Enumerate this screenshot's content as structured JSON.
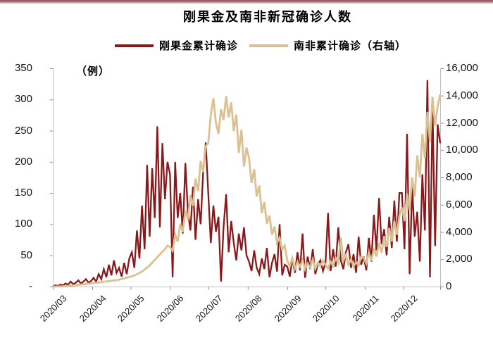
{
  "page": {
    "title": "刚果金及南非新冠确诊人数",
    "unit_label": "（例）"
  },
  "legend": {
    "congo": "刚果金累计确诊",
    "sa": "南非累计确诊（右轴）"
  },
  "colors": {
    "congo_line": "#8a1719",
    "sa_line": "#dbc191",
    "axis_line": "#bfbfbf",
    "tick_mark": "#8c8c8c",
    "top_rule": "#8e5560"
  },
  "chart_data": {
    "type": "line",
    "title": "刚果金及南非新冠确诊人数",
    "unit_label": "（例）",
    "grid": "off",
    "legend_position": "top",
    "x_tick_labels": [
      "2020/03",
      "2020/04",
      "2020/05",
      "2020/06",
      "2020/07",
      "2020/08",
      "2020/09",
      "2020/10",
      "2020/11",
      "2020/12"
    ],
    "x_month_day_offsets": [
      0,
      31,
      61,
      92,
      122,
      153,
      184,
      214,
      245,
      275
    ],
    "x_domain_days": [
      0,
      304
    ],
    "left_axis": {
      "label": "（例）",
      "min": 0,
      "max": 350,
      "tick_labels_top_to_bottom": [
        "350",
        "300",
        "250",
        "200",
        "150",
        "100",
        "50",
        "-"
      ]
    },
    "right_axis": {
      "min": 0,
      "max": 16000,
      "tick_labels_top_to_bottom": [
        "16,000",
        "14,000",
        "12,000",
        "10,000",
        "8,000",
        "6,000",
        "4,000",
        "2,000",
        "0"
      ]
    },
    "series": [
      {
        "name": "刚果金累计确诊",
        "axis": "left",
        "color": "#8a1719",
        "stroke_width": 2.3,
        "values": [
          0,
          2,
          1,
          3,
          2,
          5,
          3,
          8,
          4,
          6,
          10,
          5,
          8,
          12,
          6,
          9,
          14,
          8,
          20,
          12,
          28,
          15,
          35,
          18,
          42,
          22,
          30,
          16,
          38,
          20,
          45,
          55,
          30,
          90,
          45,
          130,
          60,
          195,
          80,
          190,
          110,
          257,
          95,
          230,
          140,
          200,
          180,
          15,
          200,
          110,
          150,
          85,
          198,
          120,
          90,
          160,
          75,
          140,
          100,
          185,
          231,
          150,
          70,
          130,
          88,
          112,
          8,
          95,
          148,
          55,
          105,
          70,
          42,
          85,
          58,
          95,
          50,
          40,
          25,
          58,
          30,
          20,
          45,
          28,
          62,
          15,
          38,
          52,
          24,
          100,
          18,
          35,
          32,
          16,
          45,
          22,
          55,
          26,
          85,
          14,
          48,
          28,
          60,
          20,
          35,
          42,
          25,
          38,
          118,
          25,
          60,
          32,
          95,
          42,
          28,
          55,
          68,
          30,
          52,
          22,
          80,
          35,
          48,
          26,
          78,
          40,
          115,
          58,
          142,
          68,
          92,
          50,
          112,
          62,
          138,
          72,
          150,
          150,
          60,
          245,
          20,
          160,
          80,
          120,
          40,
          180,
          90,
          331,
          15,
          290,
          65,
          260,
          230
        ]
      },
      {
        "name": "南非累计确诊（右轴）",
        "axis": "right",
        "color": "#dbc191",
        "stroke_width": 2.8,
        "values": [
          1,
          2,
          4,
          8,
          15,
          30,
          50,
          70,
          90,
          110,
          130,
          150,
          170,
          190,
          210,
          240,
          260,
          280,
          300,
          320,
          350,
          380,
          400,
          420,
          450,
          480,
          510,
          550,
          600,
          650,
          700,
          750,
          820,
          900,
          1000,
          1100,
          1250,
          1400,
          1550,
          1750,
          1950,
          2150,
          2350,
          2550,
          2750,
          3000,
          2900,
          2600,
          3800,
          3300,
          4600,
          4000,
          5600,
          4900,
          6700,
          5900,
          7900,
          7000,
          9200,
          8400,
          10300,
          10500,
          12600,
          13800,
          12000,
          11200,
          13000,
          12200,
          13950,
          12400,
          13500,
          11400,
          12600,
          9800,
          11500,
          8800,
          10200,
          9400,
          7600,
          8600,
          6600,
          7400,
          5400,
          6200,
          4600,
          5200,
          3800,
          4400,
          3200,
          3600,
          2700,
          3000,
          1900,
          1500,
          2100,
          1300,
          1800,
          1450,
          1950,
          1250,
          1700,
          1400,
          2000,
          1300,
          1750,
          1500,
          1900,
          1600,
          1300,
          1850,
          1500,
          2100,
          1700,
          3600,
          1900,
          2300,
          1600,
          2000,
          1450,
          1800,
          1550,
          2200,
          2100,
          1700,
          2500,
          1900,
          2800,
          2200,
          3200,
          2500,
          3700,
          2900,
          4300,
          3300,
          4800,
          3800,
          5200,
          5800,
          4800,
          6800,
          5600,
          8000,
          6600,
          9600,
          8000,
          11200,
          9400,
          12800,
          10600,
          13900,
          11800,
          13200,
          14100
        ]
      }
    ]
  }
}
